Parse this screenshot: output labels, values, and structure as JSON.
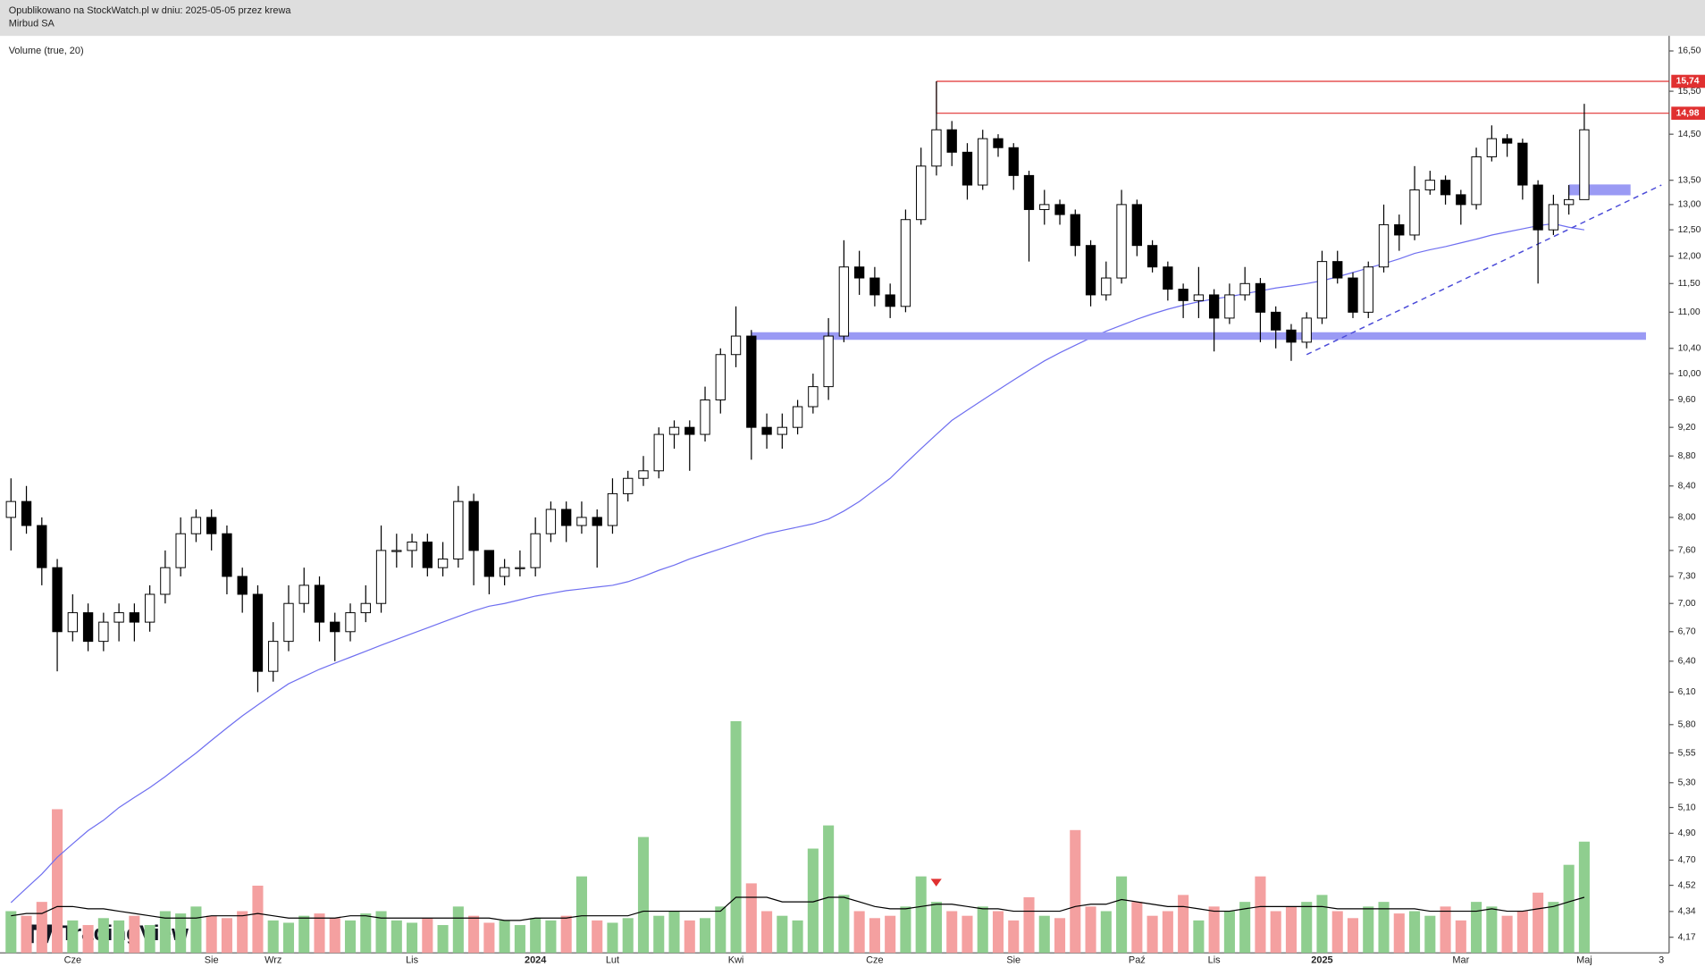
{
  "header": {
    "line1": "Opublikowano na StockWatch.pl w dniu: 2025-05-05 przez krewa",
    "line2": "Mirbud SA"
  },
  "chart_data": {
    "type": "candlestick",
    "log_scale": true,
    "volume_label": "Volume (true, 20)",
    "watermark": "TradingView",
    "ylim": [
      4.07,
      16.89
    ],
    "yticks": [
      {
        "value": 16.5,
        "label": "16,50"
      },
      {
        "value": 15.5,
        "label": "15,50"
      },
      {
        "value": 14.5,
        "label": "14,50"
      },
      {
        "value": 13.5,
        "label": "13,50"
      },
      {
        "value": 13,
        "label": "13,00"
      },
      {
        "value": 12.5,
        "label": "12,50"
      },
      {
        "value": 12,
        "label": "12,00"
      },
      {
        "value": 11.5,
        "label": "11,50"
      },
      {
        "value": 11,
        "label": "11,00"
      },
      {
        "value": 10.4,
        "label": "10,40"
      },
      {
        "value": 10,
        "label": "10,00"
      },
      {
        "value": 9.6,
        "label": "9,60"
      },
      {
        "value": 9.2,
        "label": "9,20"
      },
      {
        "value": 8.8,
        "label": "8,80"
      },
      {
        "value": 8.4,
        "label": "8,40"
      },
      {
        "value": 8,
        "label": "8,00"
      },
      {
        "value": 7.6,
        "label": "7,60"
      },
      {
        "value": 7.3,
        "label": "7,30"
      },
      {
        "value": 7,
        "label": "7,00"
      },
      {
        "value": 6.7,
        "label": "6,70"
      },
      {
        "value": 6.4,
        "label": "6,40"
      },
      {
        "value": 6.1,
        "label": "6,10"
      },
      {
        "value": 5.8,
        "label": "5,80"
      },
      {
        "value": 5.55,
        "label": "5,55"
      },
      {
        "value": 5.3,
        "label": "5,30"
      },
      {
        "value": 5.1,
        "label": "5,10"
      },
      {
        "value": 4.9,
        "label": "4,90"
      },
      {
        "value": 4.7,
        "label": "4,70"
      },
      {
        "value": 4.52,
        "label": "4,52"
      },
      {
        "value": 4.34,
        "label": "4,34"
      },
      {
        "value": 4.17,
        "label": "4,17"
      }
    ],
    "categories": [
      null,
      null,
      null,
      null,
      "Cze",
      null,
      null,
      null,
      null,
      null,
      null,
      null,
      null,
      "Sie",
      null,
      null,
      null,
      "Wrz",
      null,
      null,
      null,
      null,
      null,
      null,
      null,
      null,
      "Lis",
      null,
      null,
      null,
      null,
      null,
      null,
      null,
      "2024",
      null,
      null,
      null,
      null,
      "Lut",
      null,
      null,
      null,
      null,
      null,
      null,
      null,
      "Kwi",
      null,
      null,
      null,
      null,
      null,
      null,
      null,
      null,
      "Cze",
      null,
      null,
      null,
      null,
      null,
      null,
      null,
      null,
      "Sie",
      null,
      null,
      null,
      null,
      null,
      null,
      null,
      "Paź",
      null,
      null,
      null,
      null,
      "Lis",
      null,
      null,
      null,
      null,
      null,
      null,
      "2025",
      null,
      null,
      null,
      null,
      null,
      null,
      null,
      null,
      "Mar",
      null,
      null,
      null,
      null,
      null,
      null,
      null,
      "Maj",
      null,
      null,
      null,
      null,
      "3"
    ],
    "open": [
      8.0,
      8.2,
      7.9,
      7.4,
      6.7,
      6.9,
      6.6,
      6.8,
      6.9,
      6.8,
      7.1,
      7.4,
      7.8,
      8.0,
      7.8,
      7.3,
      7.1,
      6.3,
      6.6,
      7.0,
      7.2,
      6.8,
      6.7,
      6.9,
      7.0,
      7.6,
      7.6,
      7.7,
      7.4,
      7.5,
      8.2,
      7.6,
      7.3,
      7.4,
      7.4,
      7.8,
      8.1,
      7.9,
      8.0,
      7.9,
      8.3,
      8.5,
      8.6,
      9.1,
      9.2,
      9.1,
      9.6,
      10.3,
      10.6,
      9.2,
      9.1,
      9.2,
      9.5,
      9.8,
      10.6,
      11.8,
      11.6,
      11.3,
      11.1,
      12.7,
      13.8,
      14.6,
      14.1,
      13.4,
      14.4,
      14.2,
      13.6,
      12.9,
      13.0,
      12.8,
      12.2,
      11.3,
      11.6,
      13.0,
      12.2,
      11.8,
      11.4,
      11.2,
      11.3,
      10.9,
      11.3,
      11.5,
      11.0,
      10.7,
      10.5,
      10.9,
      11.9,
      11.6,
      11.0,
      11.8,
      12.6,
      12.4,
      13.3,
      13.5,
      13.2,
      13.0,
      14.0,
      14.4,
      14.3,
      13.4,
      12.5,
      13.0,
      13.1,
      null,
      null,
      null,
      null,
      null
    ],
    "high": [
      8.5,
      8.4,
      8.0,
      7.5,
      7.1,
      7.0,
      6.9,
      7.0,
      7.0,
      7.2,
      7.6,
      8.0,
      8.1,
      8.1,
      7.9,
      7.4,
      7.2,
      6.8,
      7.2,
      7.4,
      7.3,
      6.9,
      7.0,
      7.2,
      7.9,
      7.8,
      7.8,
      7.8,
      7.7,
      8.4,
      8.3,
      7.6,
      7.5,
      7.6,
      8.0,
      8.2,
      8.2,
      8.2,
      8.1,
      8.5,
      8.6,
      8.8,
      9.2,
      9.3,
      9.3,
      9.8,
      10.4,
      11.1,
      10.7,
      9.4,
      9.4,
      9.6,
      10.0,
      10.9,
      12.3,
      12.1,
      11.8,
      11.5,
      12.9,
      14.2,
      15.74,
      14.8,
      14.3,
      14.6,
      14.5,
      14.3,
      13.7,
      13.3,
      13.1,
      12.9,
      12.3,
      11.9,
      13.3,
      13.1,
      12.3,
      11.9,
      11.5,
      11.8,
      11.4,
      11.5,
      11.8,
      11.6,
      11.1,
      10.8,
      11.0,
      12.1,
      12.1,
      11.7,
      11.9,
      13.0,
      12.8,
      13.8,
      13.7,
      13.6,
      13.3,
      14.2,
      14.7,
      14.5,
      14.4,
      13.5,
      13.2,
      13.4,
      15.2,
      null,
      null,
      null,
      null,
      null
    ],
    "low": [
      7.6,
      7.8,
      7.2,
      6.3,
      6.6,
      6.5,
      6.5,
      6.6,
      6.6,
      6.7,
      7.0,
      7.3,
      7.7,
      7.6,
      7.1,
      6.9,
      6.1,
      6.2,
      6.5,
      6.9,
      6.6,
      6.4,
      6.6,
      6.8,
      6.9,
      7.4,
      7.4,
      7.3,
      7.3,
      7.4,
      7.2,
      7.1,
      7.2,
      7.3,
      7.3,
      7.7,
      7.7,
      7.8,
      7.4,
      7.8,
      8.2,
      8.4,
      8.5,
      8.9,
      8.6,
      9.0,
      9.4,
      10.1,
      8.75,
      8.9,
      8.9,
      9.1,
      9.4,
      9.6,
      10.5,
      11.3,
      11.1,
      10.9,
      11.0,
      12.6,
      13.6,
      13.8,
      13.1,
      13.3,
      14.0,
      13.3,
      11.9,
      12.6,
      12.6,
      12.0,
      11.1,
      11.2,
      11.5,
      12.0,
      11.7,
      11.2,
      10.9,
      10.9,
      10.35,
      10.8,
      11.2,
      10.5,
      10.4,
      10.2,
      10.4,
      10.8,
      11.5,
      10.9,
      10.9,
      11.7,
      12.1,
      12.3,
      13.2,
      13.0,
      12.6,
      12.9,
      13.9,
      14.0,
      13.1,
      11.5,
      12.4,
      12.8,
      13.1,
      null,
      null,
      null,
      null,
      null
    ],
    "close": [
      8.2,
      7.9,
      7.4,
      6.7,
      6.9,
      6.6,
      6.8,
      6.9,
      6.8,
      7.1,
      7.4,
      7.8,
      8.0,
      7.8,
      7.3,
      7.1,
      6.3,
      6.6,
      7.0,
      7.2,
      6.8,
      6.7,
      6.9,
      7.0,
      7.6,
      7.6,
      7.7,
      7.4,
      7.5,
      8.2,
      7.6,
      7.3,
      7.4,
      7.4,
      7.8,
      8.1,
      7.9,
      8.0,
      7.9,
      8.3,
      8.5,
      8.6,
      9.1,
      9.2,
      9.1,
      9.6,
      10.3,
      10.6,
      9.2,
      9.1,
      9.2,
      9.5,
      9.8,
      10.6,
      11.8,
      11.6,
      11.3,
      11.1,
      12.7,
      13.8,
      14.6,
      14.1,
      13.4,
      14.4,
      14.2,
      13.6,
      12.9,
      13.0,
      12.8,
      12.2,
      11.3,
      11.6,
      13.0,
      12.2,
      11.8,
      11.4,
      11.2,
      11.3,
      10.9,
      11.3,
      11.5,
      11.0,
      10.7,
      10.5,
      10.9,
      11.9,
      11.6,
      11.0,
      11.8,
      12.6,
      12.4,
      13.3,
      13.5,
      13.2,
      13.0,
      14.0,
      14.4,
      14.3,
      13.4,
      12.5,
      13.0,
      13.1,
      14.6,
      null,
      null,
      null,
      null,
      null
    ],
    "up_color": "#ffffff",
    "down_color": "#000000",
    "ma": {
      "color": "#6f6ff0",
      "values": [
        4.4,
        4.5,
        4.6,
        4.72,
        4.82,
        4.92,
        5.0,
        5.1,
        5.18,
        5.26,
        5.35,
        5.45,
        5.55,
        5.66,
        5.77,
        5.88,
        5.98,
        6.08,
        6.18,
        6.25,
        6.32,
        6.38,
        6.44,
        6.5,
        6.56,
        6.62,
        6.68,
        6.74,
        6.8,
        6.86,
        6.92,
        6.97,
        7.0,
        7.04,
        7.08,
        7.11,
        7.14,
        7.16,
        7.18,
        7.2,
        7.24,
        7.3,
        7.37,
        7.43,
        7.5,
        7.56,
        7.62,
        7.68,
        7.74,
        7.8,
        7.84,
        7.88,
        7.92,
        7.98,
        8.08,
        8.2,
        8.35,
        8.5,
        8.7,
        8.9,
        9.1,
        9.3,
        9.45,
        9.6,
        9.75,
        9.9,
        10.05,
        10.2,
        10.33,
        10.45,
        10.57,
        10.68,
        10.78,
        10.88,
        10.97,
        11.05,
        11.12,
        11.18,
        11.23,
        11.27,
        11.32,
        11.37,
        11.42,
        11.46,
        11.5,
        11.55,
        11.62,
        11.7,
        11.78,
        11.86,
        11.95,
        12.05,
        12.12,
        12.18,
        12.25,
        12.32,
        12.4,
        12.46,
        12.52,
        12.58,
        12.62,
        12.55,
        12.5,
        null,
        null,
        null,
        null,
        null
      ]
    },
    "volume": {
      "ylim": [
        0,
        100
      ],
      "up_color": "#8fce8f",
      "down_color": "#f4a0a0",
      "values": [
        18,
        16,
        22,
        62,
        14,
        12,
        15,
        14,
        16,
        12,
        18,
        17,
        20,
        16,
        15,
        18,
        29,
        14,
        13,
        16,
        17,
        15,
        14,
        17,
        18,
        14,
        13,
        15,
        12,
        20,
        16,
        13,
        14,
        12,
        15,
        14,
        16,
        33,
        14,
        13,
        15,
        50,
        16,
        18,
        14,
        15,
        20,
        100,
        30,
        18,
        16,
        14,
        45,
        55,
        25,
        18,
        15,
        16,
        20,
        33,
        22,
        18,
        16,
        20,
        18,
        14,
        24,
        16,
        15,
        53,
        20,
        18,
        33,
        22,
        16,
        18,
        25,
        14,
        20,
        18,
        22,
        33,
        18,
        20,
        22,
        25,
        18,
        15,
        20,
        22,
        17,
        18,
        16,
        20,
        14,
        22,
        20,
        16,
        18,
        26,
        22,
        38,
        48,
        null,
        null,
        null,
        null,
        null
      ],
      "ma": {
        "color": "#000000",
        "values": [
          16,
          17,
          17,
          20,
          20,
          19,
          19,
          18,
          17,
          16,
          15,
          15,
          15,
          16,
          16,
          16,
          17,
          16,
          15,
          15,
          15,
          15,
          16,
          16,
          15,
          15,
          15,
          15,
          15,
          15,
          15,
          15,
          14,
          14,
          15,
          15,
          15,
          16,
          16,
          16,
          16,
          18,
          18,
          18,
          18,
          18,
          18,
          24,
          24,
          24,
          22,
          22,
          22,
          24,
          24,
          22,
          20,
          19,
          19,
          20,
          21,
          21,
          20,
          19,
          19,
          18,
          18,
          18,
          18,
          20,
          21,
          21,
          23,
          22,
          21,
          20,
          20,
          19,
          18,
          18,
          19,
          20,
          20,
          20,
          20,
          20,
          19,
          19,
          19,
          19,
          19,
          19,
          18,
          18,
          18,
          18,
          19,
          18,
          18,
          19,
          20,
          22,
          24,
          null,
          null,
          null,
          null,
          null
        ]
      }
    },
    "hlines": [
      {
        "value": 15.74,
        "label": "15,74",
        "start": 60,
        "color": "#e03030"
      },
      {
        "value": 14.98,
        "label": "14,98",
        "start": 60,
        "color": "#e03030"
      }
    ],
    "zones": [
      {
        "value": 10.6,
        "start": 48,
        "end": 106,
        "color": "#9a9af4"
      },
      {
        "value": 13.3,
        "start": 101,
        "end": 105,
        "color": "#9a9af4"
      }
    ],
    "trendline": {
      "start": {
        "index": 84,
        "value": 10.3
      },
      "end": {
        "index": 107,
        "value": 13.4
      },
      "color": "#4a4ad8"
    }
  }
}
